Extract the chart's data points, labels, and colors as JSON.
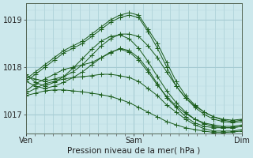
{
  "bg_color": "#cce8ec",
  "grid_color_major": "#a0c8d0",
  "grid_color_minor": "#b8d8de",
  "line_color": "#1a5c1a",
  "marker": "+",
  "markersize": 4,
  "linewidth": 0.7,
  "ylim": [
    1016.6,
    1019.35
  ],
  "yticks": [
    1017,
    1018,
    1019
  ],
  "xlim": [
    0,
    48
  ],
  "xtick_positions": [
    0,
    24,
    48
  ],
  "xtick_labels": [
    "Ven",
    "Sam",
    "Dim"
  ],
  "xlabel": "Pression niveau de la mer( hPa )",
  "xlabel_fontsize": 7.5,
  "tick_fontsize": 7,
  "series": [
    [
      1017.75,
      1017.9,
      1018.05,
      1018.2,
      1018.35,
      1018.45,
      1018.55,
      1018.7,
      1018.85,
      1019.0,
      1019.1,
      1019.15,
      1019.1,
      1018.8,
      1018.5,
      1018.1,
      1017.7,
      1017.4,
      1017.2,
      1017.05,
      1016.95,
      1016.9,
      1016.88,
      1016.9
    ],
    [
      1017.7,
      1017.85,
      1018.0,
      1018.15,
      1018.3,
      1018.4,
      1018.5,
      1018.65,
      1018.8,
      1018.95,
      1019.05,
      1019.1,
      1019.05,
      1018.75,
      1018.4,
      1018.0,
      1017.6,
      1017.35,
      1017.15,
      1017.0,
      1016.9,
      1016.85,
      1016.83,
      1016.85
    ],
    [
      1017.5,
      1017.65,
      1017.75,
      1017.85,
      1017.95,
      1018.0,
      1018.05,
      1018.1,
      1018.2,
      1018.3,
      1018.4,
      1018.35,
      1018.2,
      1017.95,
      1017.65,
      1017.35,
      1017.15,
      1016.95,
      1016.82,
      1016.75,
      1016.72,
      1016.72,
      1016.72,
      1016.75
    ],
    [
      1017.45,
      1017.55,
      1017.65,
      1017.7,
      1017.75,
      1017.78,
      1017.8,
      1017.82,
      1017.85,
      1017.85,
      1017.82,
      1017.78,
      1017.7,
      1017.55,
      1017.4,
      1017.2,
      1017.05,
      1016.9,
      1016.78,
      1016.7,
      1016.65,
      1016.65,
      1016.65,
      1016.68
    ],
    [
      1017.4,
      1017.45,
      1017.5,
      1017.52,
      1017.52,
      1017.5,
      1017.48,
      1017.45,
      1017.42,
      1017.38,
      1017.32,
      1017.25,
      1017.15,
      1017.05,
      1016.95,
      1016.85,
      1016.78,
      1016.72,
      1016.68,
      1016.65,
      1016.62,
      1016.62,
      1016.63,
      1016.65
    ],
    [
      1017.8,
      1017.75,
      1017.7,
      1017.75,
      1017.8,
      1017.9,
      1018.05,
      1018.25,
      1018.45,
      1018.6,
      1018.7,
      1018.7,
      1018.65,
      1018.45,
      1018.2,
      1017.9,
      1017.6,
      1017.35,
      1017.18,
      1017.05,
      1016.95,
      1016.88,
      1016.85,
      1016.88
    ],
    [
      1017.7,
      1017.6,
      1017.55,
      1017.6,
      1017.68,
      1017.78,
      1017.9,
      1018.05,
      1018.2,
      1018.32,
      1018.38,
      1018.32,
      1018.15,
      1017.9,
      1017.62,
      1017.38,
      1017.18,
      1017.02,
      1016.9,
      1016.82,
      1016.78,
      1016.75,
      1016.75,
      1016.78
    ],
    [
      1017.85,
      1017.68,
      1017.6,
      1017.68,
      1017.8,
      1017.98,
      1018.18,
      1018.38,
      1018.55,
      1018.65,
      1018.68,
      1018.6,
      1018.4,
      1018.12,
      1017.8,
      1017.5,
      1017.25,
      1017.05,
      1016.9,
      1016.8,
      1016.75,
      1016.72,
      1016.72,
      1016.75
    ]
  ]
}
